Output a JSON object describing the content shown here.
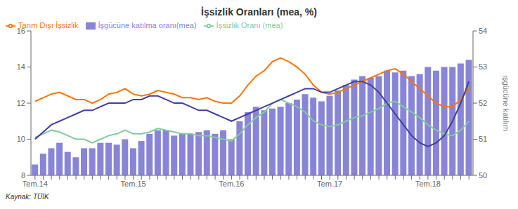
{
  "chart_data": {
    "type": "bar",
    "title": "İşsizlik Oranları (mea, %)",
    "source": "Kaynak: TÜİK",
    "y2label": "ışgücüne katılım",
    "categories": [
      "Tem.14",
      null,
      null,
      null,
      null,
      null,
      null,
      null,
      null,
      null,
      null,
      null,
      "Tem.15",
      null,
      null,
      null,
      null,
      null,
      null,
      null,
      null,
      null,
      null,
      null,
      "Tem.16",
      null,
      null,
      null,
      null,
      null,
      null,
      null,
      null,
      null,
      null,
      null,
      "Tem.17",
      null,
      null,
      null,
      null,
      null,
      null,
      null,
      null,
      null,
      null,
      null,
      "Tem.18",
      null,
      null,
      null,
      null,
      null
    ],
    "series": [
      {
        "name": "İşgücüne katılma oranı(mea)",
        "type": "bar",
        "color": "#8884d8",
        "values": [
          8.6,
          9.2,
          9.5,
          9.8,
          9.3,
          9.0,
          9.5,
          9.5,
          9.8,
          9.8,
          9.7,
          10.0,
          9.5,
          9.9,
          10.3,
          10.5,
          10.5,
          10.2,
          10.3,
          10.3,
          10.4,
          10.5,
          10.3,
          10.5,
          10.0,
          11.0,
          11.5,
          11.8,
          11.6,
          11.7,
          11.8,
          12.0,
          12.2,
          12.5,
          12.3,
          12.1,
          12.4,
          12.7,
          13.0,
          13.3,
          13.5,
          13.4,
          13.5,
          13.8,
          13.7,
          13.8,
          13.5,
          13.6,
          14.0,
          13.8,
          14.0,
          14.0,
          14.2,
          14.4
        ]
      },
      {
        "name": "İşsizlik Oranı (mea)",
        "type": "line",
        "color": "#82ca9d",
        "values": [
          10.1,
          10.3,
          10.5,
          10.4,
          10.2,
          10.0,
          10.0,
          9.8,
          10.0,
          10.2,
          10.3,
          10.5,
          10.3,
          10.3,
          10.4,
          10.6,
          10.5,
          10.4,
          10.3,
          10.3,
          10.2,
          10.2,
          10.1,
          10.0,
          9.9,
          10.3,
          10.8,
          11.2,
          11.5,
          12.0,
          12.2,
          12.0,
          11.8,
          11.5,
          11.0,
          10.8,
          10.7,
          10.8,
          11.0,
          11.2,
          11.3,
          11.5,
          11.7,
          12.0,
          12.1,
          11.8,
          11.5,
          11.2,
          10.8,
          10.5,
          10.3,
          10.2,
          10.5,
          11.0
        ]
      },
      {
        "name": "Tarım Dışı İşsizlik",
        "type": "line",
        "color": "#ff7300",
        "values": [
          12.1,
          12.3,
          12.5,
          12.6,
          12.4,
          12.2,
          12.2,
          12.0,
          12.2,
          12.5,
          12.6,
          12.8,
          12.5,
          12.4,
          12.5,
          12.7,
          12.6,
          12.5,
          12.3,
          12.3,
          12.2,
          12.3,
          12.1,
          12.0,
          12.0,
          12.4,
          13.0,
          13.5,
          13.8,
          14.3,
          14.5,
          14.3,
          14.0,
          13.6,
          13.0,
          12.6,
          12.5,
          12.6,
          12.8,
          13.0,
          13.2,
          13.4,
          13.6,
          13.8,
          13.9,
          13.6,
          13.2,
          12.8,
          12.4,
          12.0,
          11.8,
          11.8,
          12.2,
          12.8
        ]
      },
      {
        "type": "line",
        "axis": "y2",
        "color": "#413ea0",
        "values": [
          51.0,
          51.2,
          51.4,
          51.5,
          51.6,
          51.7,
          51.8,
          51.8,
          51.9,
          52.0,
          52.0,
          52.0,
          52.1,
          52.1,
          52.2,
          52.2,
          52.1,
          52.0,
          52.0,
          51.9,
          51.8,
          51.8,
          51.7,
          51.6,
          51.5,
          51.6,
          51.7,
          51.8,
          51.9,
          52.0,
          52.1,
          52.2,
          52.3,
          52.4,
          52.4,
          52.3,
          52.3,
          52.4,
          52.5,
          52.6,
          52.6,
          52.5,
          52.3,
          52.0,
          51.7,
          51.4,
          51.1,
          50.9,
          50.8,
          50.9,
          51.1,
          51.5,
          52.0,
          52.6
        ]
      }
    ],
    "ylim": [
      8,
      16
    ],
    "yticks": [
      8,
      10,
      12,
      14,
      16
    ],
    "y2lim": [
      50,
      54
    ],
    "y2ticks": [
      50,
      51,
      52,
      53,
      54
    ],
    "legend": "upper left",
    "grid": false
  }
}
